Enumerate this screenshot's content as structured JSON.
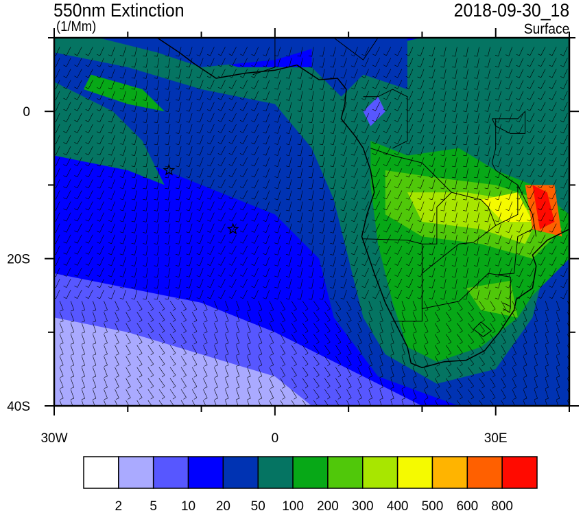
{
  "header": {
    "title": "550nm Extinction",
    "units": "(1/Mm)",
    "date": "2018-09-30_18",
    "level": "Surface"
  },
  "map": {
    "lon_range": [
      -30,
      40
    ],
    "lat_range": [
      -40,
      10
    ],
    "x_tick_labels": [
      {
        "lon": -30,
        "label": "30W"
      },
      {
        "lon": 0,
        "label": "0"
      },
      {
        "lon": 30,
        "label": "30E"
      }
    ],
    "y_tick_labels": [
      {
        "lat": 0,
        "label": "0"
      },
      {
        "lat": -20,
        "label": "20S"
      },
      {
        "lat": -40,
        "label": "40S"
      }
    ],
    "markers": [
      {
        "lon": -14.4,
        "lat": -8,
        "icon": "star-icon"
      },
      {
        "lon": -5.7,
        "lat": -16,
        "icon": "star-icon"
      }
    ],
    "overlay": "wind-barbs"
  },
  "colorbar": {
    "labels": [
      "2",
      "5",
      "10",
      "20",
      "50",
      "100",
      "200",
      "300",
      "400",
      "500",
      "600",
      "800"
    ],
    "colors": [
      "#ffffff",
      "#aaaaff",
      "#5757ff",
      "#0000ff",
      "#0033b3",
      "#057462",
      "#07a817",
      "#50c80a",
      "#a8e600",
      "#f5fa00",
      "#ffb400",
      "#ff6000",
      "#ff0a00"
    ]
  }
}
